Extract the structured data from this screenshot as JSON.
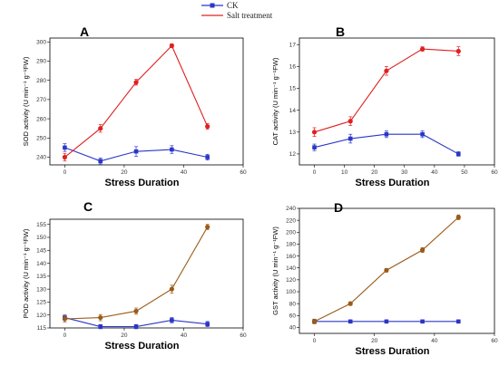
{
  "legend": {
    "items": [
      {
        "label": "CK",
        "color": "#2b35c9",
        "marker": "square"
      },
      {
        "label": "Salt treatment",
        "color": "#e02020",
        "marker": "none"
      }
    ]
  },
  "chart_data": [
    {
      "type": "line",
      "panel_label": "A",
      "xlabel": "Stress Duration",
      "ylabel": "SOD activity (U min⁻¹ g⁻¹FW)",
      "xlim": [
        -5,
        60
      ],
      "ylim": [
        236,
        302
      ],
      "xticks": [
        0,
        20,
        40,
        60
      ],
      "yticks": [
        240,
        250,
        260,
        270,
        280,
        290,
        300
      ],
      "grid": false,
      "x": [
        0,
        12,
        24,
        36,
        48
      ],
      "series": [
        {
          "name": "CK",
          "color": "#2b35c9",
          "values": [
            245,
            238,
            243,
            244,
            240
          ],
          "errors": [
            2,
            1.5,
            2.5,
            2,
            1.5
          ]
        },
        {
          "name": "Salt treatment",
          "color": "#e02020",
          "values": [
            240,
            255,
            279,
            298,
            256
          ],
          "errors": [
            2,
            2,
            1.5,
            1,
            1.5
          ]
        }
      ]
    },
    {
      "type": "line",
      "panel_label": "B",
      "xlabel": "Stress Duration",
      "ylabel": "CAT activity (U min⁻¹ g⁻¹FW)",
      "xlim": [
        -5,
        60
      ],
      "ylim": [
        11.5,
        17.3
      ],
      "xticks": [
        0,
        10,
        20,
        30,
        40,
        50,
        60
      ],
      "yticks": [
        12,
        13,
        14,
        15,
        16,
        17
      ],
      "grid": false,
      "x": [
        0,
        12,
        24,
        36,
        48
      ],
      "series": [
        {
          "name": "CK",
          "color": "#2b35c9",
          "values": [
            12.3,
            12.7,
            12.9,
            12.9,
            12.0
          ],
          "errors": [
            0.15,
            0.2,
            0.15,
            0.15,
            0.1
          ]
        },
        {
          "name": "Salt treatment",
          "color": "#e02020",
          "values": [
            13.0,
            13.5,
            15.8,
            16.8,
            16.7
          ],
          "errors": [
            0.2,
            0.2,
            0.2,
            0.1,
            0.2
          ]
        }
      ]
    },
    {
      "type": "line",
      "panel_label": "C",
      "xlabel": "Stress Duration",
      "ylabel": "POD activity (U min⁻¹ g⁻¹FW)",
      "xlim": [
        -5,
        60
      ],
      "ylim": [
        115,
        157
      ],
      "xticks": [
        0,
        20,
        40,
        60
      ],
      "yticks": [
        115,
        120,
        125,
        130,
        135,
        140,
        145,
        150,
        155
      ],
      "grid": false,
      "x": [
        0,
        12,
        24,
        36,
        48
      ],
      "series": [
        {
          "name": "CK",
          "color": "#2b35c9",
          "values": [
            119,
            115.5,
            115.5,
            118,
            116.5
          ],
          "errors": [
            1,
            0.8,
            0.8,
            1,
            1
          ]
        },
        {
          "name": "Salt treatment",
          "color": "#9a5a18",
          "values": [
            118.5,
            119,
            121.5,
            130,
            154
          ],
          "errors": [
            1.2,
            1.2,
            1.2,
            1.5,
            1
          ]
        }
      ]
    },
    {
      "type": "line",
      "panel_label": "D",
      "xlabel": "Stress Duration",
      "ylabel": "GST activity (U min⁻¹ g⁻¹FW)",
      "xlim": [
        -5,
        60
      ],
      "ylim": [
        30,
        240
      ],
      "xticks": [
        0,
        20,
        40,
        60
      ],
      "yticks": [
        40,
        60,
        80,
        100,
        120,
        140,
        160,
        180,
        200,
        220,
        240
      ],
      "grid": false,
      "x": [
        0,
        12,
        24,
        36,
        48
      ],
      "series": [
        {
          "name": "CK",
          "color": "#2b35c9",
          "values": [
            50,
            50,
            50,
            50,
            50
          ],
          "errors": [
            2,
            1,
            1,
            1,
            1
          ]
        },
        {
          "name": "Salt treatment",
          "color": "#9a5a18",
          "values": [
            50,
            80,
            136,
            170,
            225
          ],
          "errors": [
            4,
            3,
            3,
            4,
            4
          ]
        }
      ]
    }
  ]
}
